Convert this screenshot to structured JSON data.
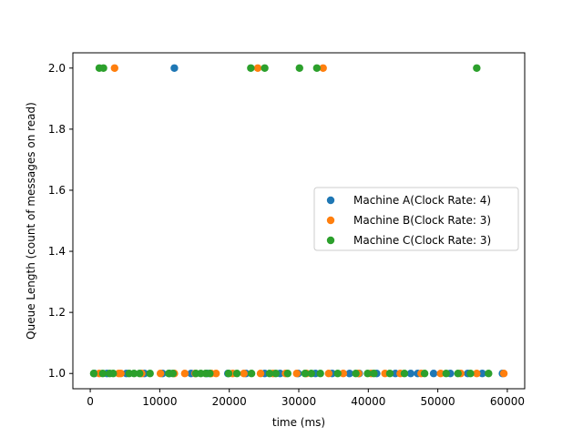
{
  "chart_data": {
    "type": "scatter",
    "title": "",
    "xlabel": "time (ms)",
    "ylabel": "Queue Length (count of messages on read)",
    "xlim": [
      -2500,
      62500
    ],
    "ylim": [
      0.95,
      2.05
    ],
    "xticks": [
      0,
      10000,
      20000,
      30000,
      40000,
      50000,
      60000
    ],
    "xtick_labels": [
      "0",
      "10000",
      "20000",
      "30000",
      "40000",
      "50000",
      "60000"
    ],
    "yticks": [
      1.0,
      1.2,
      1.4,
      1.6,
      1.8,
      2.0
    ],
    "ytick_labels": [
      "1.0",
      "1.2",
      "1.4",
      "1.6",
      "1.8",
      "2.0"
    ],
    "grid": false,
    "legend_position": "center-right",
    "series": [
      {
        "name": "Machine A(Clock Rate: 4)",
        "color": "#1f77b4",
        "points": [
          {
            "x": 600,
            "y": 1
          },
          {
            "x": 2400,
            "y": 1
          },
          {
            "x": 5200,
            "y": 1
          },
          {
            "x": 7800,
            "y": 1
          },
          {
            "x": 10400,
            "y": 1
          },
          {
            "x": 11400,
            "y": 1
          },
          {
            "x": 12100,
            "y": 2
          },
          {
            "x": 14500,
            "y": 1
          },
          {
            "x": 16800,
            "y": 1
          },
          {
            "x": 19800,
            "y": 1
          },
          {
            "x": 22400,
            "y": 1
          },
          {
            "x": 25100,
            "y": 1
          },
          {
            "x": 27300,
            "y": 1
          },
          {
            "x": 29900,
            "y": 1
          },
          {
            "x": 32400,
            "y": 1
          },
          {
            "x": 34800,
            "y": 1
          },
          {
            "x": 37300,
            "y": 1
          },
          {
            "x": 38700,
            "y": 1
          },
          {
            "x": 41200,
            "y": 1
          },
          {
            "x": 43900,
            "y": 1
          },
          {
            "x": 46100,
            "y": 1
          },
          {
            "x": 47100,
            "y": 1
          },
          {
            "x": 49400,
            "y": 1
          },
          {
            "x": 51800,
            "y": 1
          },
          {
            "x": 54300,
            "y": 1
          },
          {
            "x": 56400,
            "y": 1
          },
          {
            "x": 59300,
            "y": 1
          }
        ]
      },
      {
        "name": "Machine B(Clock Rate: 3)",
        "color": "#ff7f0e",
        "points": [
          {
            "x": 3500,
            "y": 2
          },
          {
            "x": 1300,
            "y": 1
          },
          {
            "x": 4100,
            "y": 1
          },
          {
            "x": 4400,
            "y": 1
          },
          {
            "x": 7400,
            "y": 1
          },
          {
            "x": 10100,
            "y": 1
          },
          {
            "x": 12100,
            "y": 1
          },
          {
            "x": 13600,
            "y": 1
          },
          {
            "x": 15100,
            "y": 1
          },
          {
            "x": 17400,
            "y": 1
          },
          {
            "x": 18100,
            "y": 1
          },
          {
            "x": 20500,
            "y": 1
          },
          {
            "x": 22100,
            "y": 1
          },
          {
            "x": 24100,
            "y": 2
          },
          {
            "x": 24500,
            "y": 1
          },
          {
            "x": 26300,
            "y": 1
          },
          {
            "x": 28100,
            "y": 1
          },
          {
            "x": 29700,
            "y": 1
          },
          {
            "x": 31100,
            "y": 1
          },
          {
            "x": 33500,
            "y": 2
          },
          {
            "x": 34300,
            "y": 1
          },
          {
            "x": 36400,
            "y": 1
          },
          {
            "x": 38600,
            "y": 1
          },
          {
            "x": 40400,
            "y": 1
          },
          {
            "x": 42400,
            "y": 1
          },
          {
            "x": 44600,
            "y": 1
          },
          {
            "x": 47600,
            "y": 1
          },
          {
            "x": 50400,
            "y": 1
          },
          {
            "x": 53300,
            "y": 1
          },
          {
            "x": 55600,
            "y": 1
          },
          {
            "x": 59500,
            "y": 1
          }
        ]
      },
      {
        "name": "Machine C(Clock Rate: 3)",
        "color": "#2ca02c",
        "points": [
          {
            "x": 1300,
            "y": 2
          },
          {
            "x": 1900,
            "y": 2
          },
          {
            "x": 23100,
            "y": 2
          },
          {
            "x": 25100,
            "y": 2
          },
          {
            "x": 30100,
            "y": 2
          },
          {
            "x": 32600,
            "y": 2
          },
          {
            "x": 55600,
            "y": 2
          },
          {
            "x": 500,
            "y": 1
          },
          {
            "x": 1800,
            "y": 1
          },
          {
            "x": 2800,
            "y": 1
          },
          {
            "x": 3300,
            "y": 1
          },
          {
            "x": 5600,
            "y": 1
          },
          {
            "x": 6300,
            "y": 1
          },
          {
            "x": 7100,
            "y": 1
          },
          {
            "x": 8600,
            "y": 1
          },
          {
            "x": 11300,
            "y": 1
          },
          {
            "x": 11900,
            "y": 1
          },
          {
            "x": 15200,
            "y": 1
          },
          {
            "x": 15900,
            "y": 1
          },
          {
            "x": 16600,
            "y": 1
          },
          {
            "x": 17200,
            "y": 1
          },
          {
            "x": 19900,
            "y": 1
          },
          {
            "x": 21100,
            "y": 1
          },
          {
            "x": 23200,
            "y": 1
          },
          {
            "x": 25800,
            "y": 1
          },
          {
            "x": 26700,
            "y": 1
          },
          {
            "x": 28400,
            "y": 1
          },
          {
            "x": 30900,
            "y": 1
          },
          {
            "x": 31800,
            "y": 1
          },
          {
            "x": 33100,
            "y": 1
          },
          {
            "x": 35600,
            "y": 1
          },
          {
            "x": 38200,
            "y": 1
          },
          {
            "x": 39900,
            "y": 1
          },
          {
            "x": 40800,
            "y": 1
          },
          {
            "x": 43100,
            "y": 1
          },
          {
            "x": 45200,
            "y": 1
          },
          {
            "x": 48100,
            "y": 1
          },
          {
            "x": 51200,
            "y": 1
          },
          {
            "x": 52900,
            "y": 1
          },
          {
            "x": 54700,
            "y": 1
          },
          {
            "x": 57300,
            "y": 1
          }
        ]
      }
    ]
  }
}
